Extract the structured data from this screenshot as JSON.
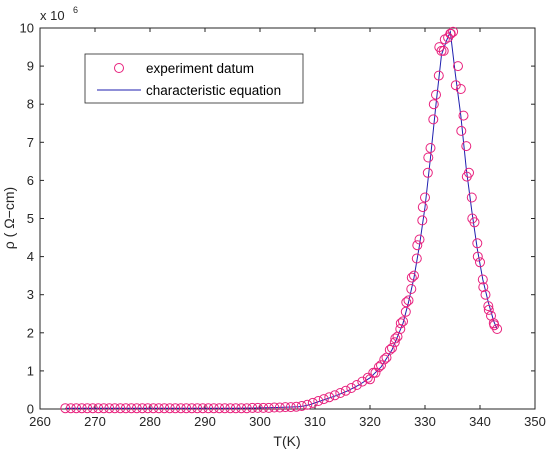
{
  "chart_data": {
    "type": "scatter",
    "title": "",
    "xlabel": "T(K)",
    "ylabel": "ρ ( Ω−cm)",
    "xlim": [
      260,
      350
    ],
    "ylim": [
      0,
      10
    ],
    "y_multiplier": {
      "base": "x 10",
      "exponent": "6"
    },
    "x_ticks": [
      260,
      270,
      280,
      290,
      300,
      310,
      320,
      330,
      340,
      350
    ],
    "y_ticks": [
      0,
      1,
      2,
      3,
      4,
      5,
      6,
      7,
      8,
      9,
      10
    ],
    "grid": false,
    "legend_placement": "top-left",
    "series": [
      {
        "name": "experiment datum",
        "kind": "markers",
        "marker": "circle",
        "color": "#e8217d",
        "x": [
          264.6,
          265.6,
          266.6,
          267.6,
          268.6,
          269.6,
          270.6,
          271.6,
          272.6,
          273.6,
          274.6,
          275.6,
          276.6,
          277.6,
          278.6,
          279.6,
          280.6,
          281.6,
          282.6,
          283.6,
          284.6,
          285.6,
          286.6,
          287.6,
          288.6,
          289.6,
          290.6,
          291.6,
          292.6,
          293.6,
          294.6,
          295.6,
          296.6,
          297.6,
          298.6,
          299.6,
          300.6,
          301.6,
          302.6,
          303.6,
          304.6,
          305.6,
          306.6,
          307.6,
          308.6,
          309.6,
          310.6,
          311.6,
          312.6,
          313.6,
          314.6,
          315.6,
          316.6,
          317.6,
          318.6,
          319.6,
          320.6,
          321.6,
          322.6,
          323.6,
          324.6,
          325.6,
          326.6,
          327.6,
          328.6,
          329.6,
          330.6,
          331.6,
          332.6,
          333.6,
          334.6,
          335.6,
          336.6,
          337.6,
          338.6,
          339.6,
          340.6,
          341.6,
          342.6,
          343.1,
          333.4,
          334.2,
          334.7,
          335.1,
          320.0,
          321.0,
          322.0,
          323.0,
          324.0,
          324.5,
          325.0,
          325.5,
          326.0,
          326.5,
          327.0,
          327.5,
          328.0,
          328.5,
          329.0,
          329.5,
          330.0,
          330.5,
          331.0,
          331.5,
          332.0,
          332.5,
          333.0,
          336.0,
          336.5,
          337.0,
          337.5,
          338.0,
          338.5,
          339.0,
          339.5,
          340.0,
          340.5,
          341.0,
          341.5,
          342.0,
          342.5
        ],
        "y": [
          0.02,
          0.02,
          0.02,
          0.02,
          0.02,
          0.02,
          0.02,
          0.02,
          0.02,
          0.02,
          0.02,
          0.02,
          0.02,
          0.02,
          0.02,
          0.02,
          0.02,
          0.02,
          0.02,
          0.02,
          0.02,
          0.02,
          0.02,
          0.02,
          0.02,
          0.02,
          0.02,
          0.02,
          0.02,
          0.02,
          0.02,
          0.02,
          0.02,
          0.02,
          0.03,
          0.03,
          0.03,
          0.03,
          0.04,
          0.04,
          0.05,
          0.05,
          0.06,
          0.08,
          0.11,
          0.16,
          0.21,
          0.26,
          0.31,
          0.36,
          0.42,
          0.48,
          0.55,
          0.63,
          0.72,
          0.82,
          0.95,
          1.1,
          1.3,
          1.55,
          1.85,
          2.25,
          2.8,
          3.45,
          4.3,
          5.3,
          6.6,
          8.0,
          9.5,
          9.7,
          9.85,
          8.5,
          7.3,
          6.1,
          5.0,
          4.0,
          3.2,
          2.6,
          2.2,
          2.1,
          9.4,
          9.75,
          9.85,
          9.9,
          0.78,
          0.95,
          1.15,
          1.35,
          1.6,
          1.75,
          1.9,
          2.1,
          2.3,
          2.55,
          2.85,
          3.15,
          3.5,
          3.95,
          4.45,
          4.95,
          5.55,
          6.2,
          6.85,
          7.6,
          8.25,
          8.75,
          9.4,
          9.0,
          8.4,
          7.7,
          6.9,
          6.2,
          5.55,
          4.9,
          4.35,
          3.85,
          3.4,
          3.0,
          2.7,
          2.45,
          2.25
        ],
        "sort_note": ""
      },
      {
        "name": "characteristic equation",
        "kind": "line",
        "color": "#1f1faf",
        "x": [
          264.6,
          270,
          280,
          290,
          295,
          300,
          303,
          305,
          307,
          308,
          309,
          310,
          312,
          314,
          316,
          318,
          320,
          322,
          324,
          326,
          327,
          328,
          329,
          330,
          331,
          332,
          333,
          334,
          334.6,
          335.5,
          336.5,
          337.5,
          338.5,
          339.5,
          340.5,
          341.5,
          342.5,
          343.1
        ],
        "y": [
          0.02,
          0.02,
          0.02,
          0.02,
          0.02,
          0.03,
          0.04,
          0.05,
          0.06,
          0.08,
          0.11,
          0.16,
          0.26,
          0.36,
          0.48,
          0.63,
          0.82,
          1.1,
          1.55,
          2.25,
          2.8,
          3.45,
          4.3,
          5.3,
          6.6,
          8.0,
          9.3,
          9.7,
          9.9,
          8.8,
          7.7,
          6.3,
          5.2,
          4.2,
          3.4,
          2.8,
          2.3,
          2.1
        ]
      }
    ]
  }
}
